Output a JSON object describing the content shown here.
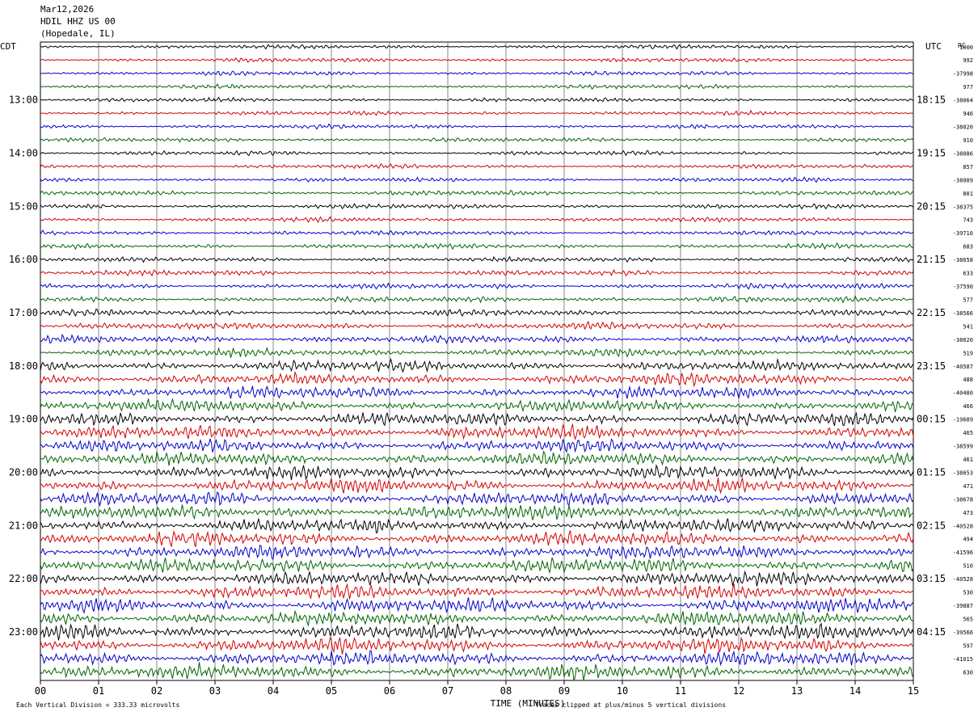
{
  "header": {
    "date": "Mar12,2026",
    "station": "HDIL HHZ US 00",
    "location": "(Hopedale, IL)"
  },
  "left_timezone": "CDT",
  "right_timezone": "UTC",
  "rc_label": "RC",
  "footer": {
    "scale_note": "Each Vertical Division =  333.33 microvolts",
    "clip_note": "Traces clipped at plus/minus 5 vertical divisions"
  },
  "colors": {
    "trace_cycle": [
      "#000000",
      "#d40000",
      "#0000cc",
      "#006400"
    ],
    "grid": "#000000"
  },
  "chart_data": {
    "type": "line",
    "title": "",
    "xlabel": "TIME (MINUTES)",
    "xlim": [
      0,
      15
    ],
    "x_ticks": [
      "00",
      "01",
      "02",
      "03",
      "04",
      "05",
      "06",
      "07",
      "08",
      "09",
      "10",
      "11",
      "12",
      "13",
      "14",
      "15"
    ],
    "rows_per_hour": 4,
    "row_count": 48,
    "left_hour_labels": [
      {
        "row": 4,
        "label": "13:00"
      },
      {
        "row": 8,
        "label": "14:00"
      },
      {
        "row": 12,
        "label": "15:00"
      },
      {
        "row": 16,
        "label": "16:00"
      },
      {
        "row": 20,
        "label": "17:00"
      },
      {
        "row": 24,
        "label": "18:00"
      },
      {
        "row": 28,
        "label": "19:00"
      },
      {
        "row": 32,
        "label": "20:00"
      },
      {
        "row": 36,
        "label": "21:00"
      },
      {
        "row": 40,
        "label": "22:00"
      },
      {
        "row": 44,
        "label": "23:00"
      }
    ],
    "right_hour_labels": [
      {
        "row": 4,
        "label": "18:15"
      },
      {
        "row": 8,
        "label": "19:15"
      },
      {
        "row": 12,
        "label": "20:15"
      },
      {
        "row": 16,
        "label": "21:15"
      },
      {
        "row": 20,
        "label": "22:15"
      },
      {
        "row": 24,
        "label": "23:15"
      },
      {
        "row": 28,
        "label": "00:15"
      },
      {
        "row": 32,
        "label": "01:15"
      },
      {
        "row": 36,
        "label": "02:15"
      },
      {
        "row": 40,
        "label": "03:15"
      },
      {
        "row": 44,
        "label": "04:15"
      }
    ],
    "rc_values": [
      "1000",
      "992",
      "-37998",
      "977",
      "-38064",
      "946",
      "-38020",
      "910",
      "-38086",
      "857",
      "-38089",
      "801",
      "-38375",
      "743",
      "-39710",
      "683",
      "-38658",
      "633",
      "-37590",
      "577",
      "-38566",
      "541",
      "-38620",
      "519",
      "-40587",
      "488",
      "-40480",
      "466",
      "-19689",
      "465",
      "-38599",
      "461",
      "-38653",
      "471",
      "-38678",
      "473",
      "-40528",
      "494",
      "-41596",
      "510",
      "-40528",
      "530",
      "-39887",
      "565",
      "-39566",
      "597",
      "-41015",
      "630"
    ],
    "row_amplitude": [
      1.0,
      1.0,
      1.0,
      1.0,
      1.0,
      1.0,
      1.0,
      1.0,
      1.0,
      1.0,
      1.0,
      1.1,
      1.1,
      1.1,
      1.1,
      1.2,
      1.2,
      1.3,
      1.3,
      1.4,
      1.5,
      1.7,
      1.8,
      2.0,
      2.6,
      2.8,
      2.8,
      2.9,
      3.2,
      3.2,
      3.1,
      3.1,
      3.2,
      3.2,
      3.2,
      3.3,
      3.3,
      3.3,
      3.3,
      3.3,
      3.4,
      3.4,
      3.4,
      3.4,
      3.5,
      3.5,
      3.5,
      3.5
    ]
  }
}
